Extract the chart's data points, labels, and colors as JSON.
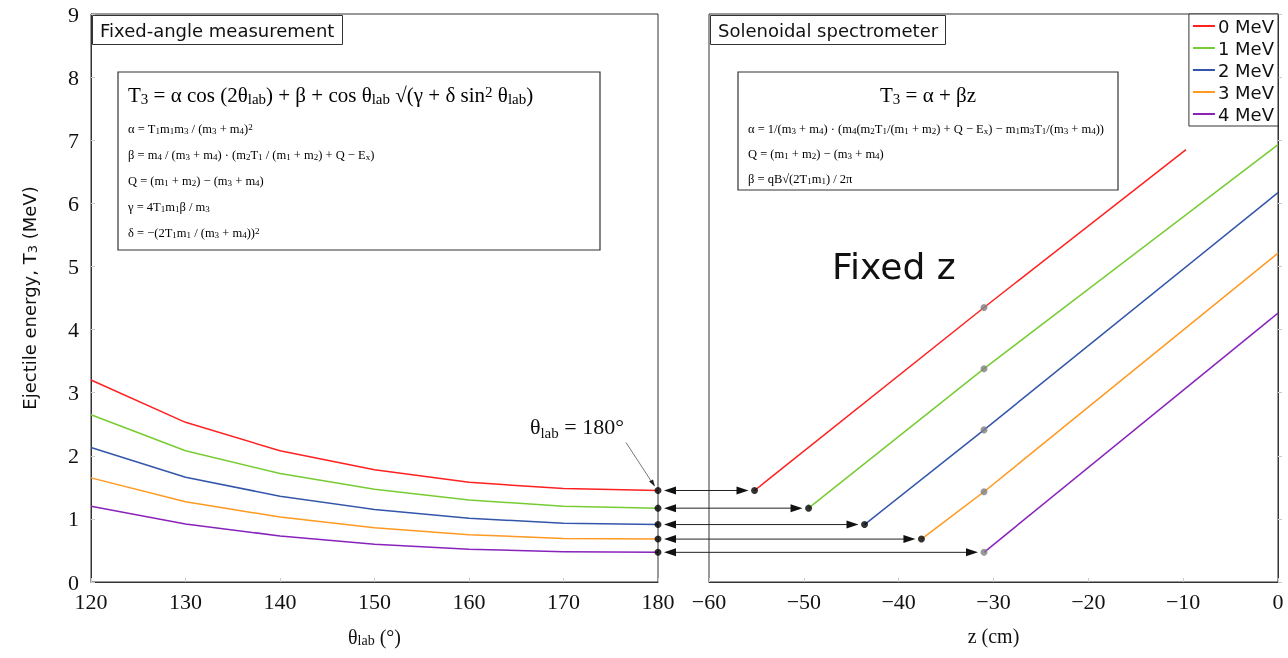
{
  "chart_data": [
    {
      "type": "line",
      "title": "Fixed-angle measurement",
      "xlabel": "θ$_{lab}$ (°)",
      "ylabel": "Ejectile energy, T$_{3}$ (MeV)",
      "x": [
        120,
        130,
        140,
        150,
        160,
        170,
        180
      ],
      "xlim": [
        120,
        180
      ],
      "xticks": [
        120,
        130,
        140,
        150,
        160,
        170,
        180
      ],
      "ylim": [
        0,
        9
      ],
      "yticks": [
        0,
        1,
        2,
        3,
        4,
        5,
        6,
        7,
        8,
        9
      ],
      "marker": "none",
      "series": [
        {
          "color": "#ff2020",
          "values": [
            3.2,
            2.53,
            2.08,
            1.78,
            1.58,
            1.48,
            1.45
          ]
        },
        {
          "color": "#77cc33",
          "values": [
            2.65,
            2.08,
            1.72,
            1.47,
            1.3,
            1.2,
            1.17
          ]
        },
        {
          "color": "#3355aa",
          "values": [
            2.13,
            1.66,
            1.36,
            1.15,
            1.01,
            0.93,
            0.91
          ]
        },
        {
          "color": "#ff9922",
          "values": [
            1.65,
            1.27,
            1.03,
            0.86,
            0.75,
            0.69,
            0.68
          ]
        },
        {
          "color": "#8822bb",
          "values": [
            1.2,
            0.92,
            0.73,
            0.6,
            0.52,
            0.48,
            0.47
          ]
        },
        {
          "type": "scatter",
          "marker": "circle",
          "color": "#000000",
          "x": [
            180,
            180,
            180,
            180,
            180
          ],
          "values": [
            1.45,
            1.17,
            0.91,
            0.68,
            0.47
          ]
        }
      ],
      "annotations": [
        "T$_{3}$ = α cos (2θ$_{lab}$) + β + cos θ$_{lab}$ √(γ + δ sin$^{2}$ θ$_{lab}$)",
        "α = T$_{1}$m$_{1}$m$_{3}$ / (m$_{3}$ + m$_{4}$)$^{2}$",
        "β = m$_{4}$ / (m$_{3}$ + m$_{4}$) · (m$_{2}$T$_{1}$ / (m$_{1}$ + m$_{2}$) + Q − E$_{x}$)",
        "Q = (m$_{1}$ + m$_{2}$) − (m$_{3}$ + m$_{4}$)",
        "γ = 4T$_{1}$m$_{1}$β / m$_{3}$",
        "δ = −(2T$_{1}$m$_{1}$ / (m$_{3}$ + m$_{4}$))$^{2}$",
        {
          "text": "θ$_{lab}$ = 180°",
          "x": 180,
          "y": 1.45
        }
      ]
    },
    {
      "type": "line",
      "title": "Solenoidal spectrometer",
      "xlabel": "z (cm)",
      "xlim": [
        -60,
        0
      ],
      "xticks": [
        -60,
        -50,
        -40,
        -30,
        -20,
        -10,
        0
      ],
      "ylim": [
        0,
        9
      ],
      "yticks": [
        0,
        1,
        2,
        3,
        4,
        5,
        6,
        7,
        8,
        9
      ],
      "tick_labels": "x",
      "marker": "none",
      "legend": "top right",
      "series": [
        {
          "name": "0 MeV",
          "color": "#ff2020",
          "x": [
            -55.2,
            -31,
            -9.7
          ],
          "values": [
            1.45,
            4.35,
            6.85
          ]
        },
        {
          "name": "1 MeV",
          "color": "#77cc33",
          "x": [
            -49.5,
            -31,
            0
          ],
          "values": [
            1.17,
            3.38,
            6.93
          ]
        },
        {
          "name": "2 MeV",
          "color": "#3355aa",
          "x": [
            -43.6,
            -31,
            0
          ],
          "values": [
            0.91,
            2.41,
            6.17
          ]
        },
        {
          "name": "3 MeV",
          "color": "#ff9922",
          "x": [
            -37.6,
            -31,
            0
          ],
          "values": [
            0.68,
            1.43,
            5.21
          ]
        },
        {
          "name": "4 MeV",
          "color": "#8822bb",
          "x": [
            -31,
            0
          ],
          "values": [
            0.47,
            4.26
          ]
        },
        {
          "type": "scatter",
          "marker": "circle",
          "color": "#808080",
          "x": [
            -31,
            -31,
            -31,
            -31,
            -31
          ],
          "values": [
            4.35,
            3.38,
            2.41,
            1.43,
            0.47
          ]
        },
        {
          "type": "scatter",
          "marker": "circle",
          "color": "#000000",
          "x": [
            -55.2,
            -49.5,
            -43.6,
            -37.6
          ],
          "values": [
            1.45,
            1.17,
            0.91,
            0.68
          ]
        }
      ],
      "annotations": [
        "T$_{3}$ = α + βz",
        "α = 1/(m$_{3}$ + m$_{4}$) · (m$_{4}$(m$_{2}$T$_{1}$/(m$_{1}$ + m$_{2}$) + Q − E$_{x}$) − m$_{1}$m$_{3}$T$_{1}$/(m$_{3}$ + m$_{4}$))",
        "Q = (m$_{1}$ + m$_{2}$) − (m$_{3}$ + m$_{4}$)",
        "β = qB√(2T$_{1}$m$_{1}$) / 2π",
        "Fixed z"
      ]
    }
  ]
}
